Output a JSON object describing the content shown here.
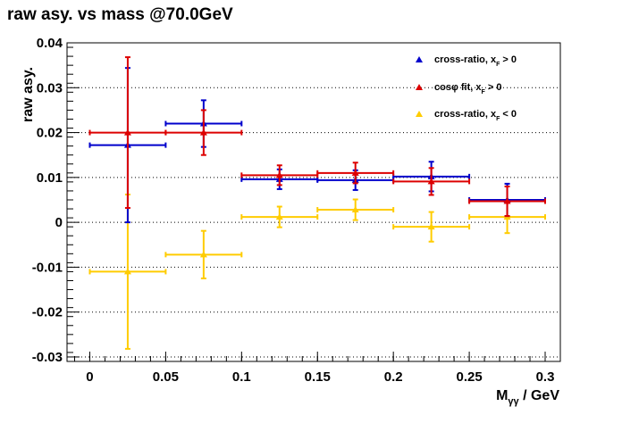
{
  "chart_data": {
    "type": "scatter",
    "title": "raw asy. vs mass @70.0GeV",
    "xlabel": "M_γγ / GeV",
    "ylabel": "raw asy.",
    "xlim": [
      -0.015,
      0.31
    ],
    "ylim": [
      -0.031,
      0.04
    ],
    "xticks": [
      0,
      0.05,
      0.1,
      0.15,
      0.2,
      0.25,
      0.3
    ],
    "xtick_labels": [
      "0",
      "0.05",
      "0.1",
      "0.15",
      "0.2",
      "0.25",
      "0.3"
    ],
    "yticks": [
      0.04,
      0.03,
      0.02,
      0.01,
      0,
      -0.01,
      -0.02,
      -0.03
    ],
    "ytick_labels": [
      "0.04",
      "0.03",
      "0.02",
      "0.01",
      "0",
      "-0.01",
      "-0.02",
      "-0.03"
    ],
    "grid": "horizontal dotted",
    "legend_position": "top-right",
    "series": [
      {
        "name": "cross-ratio, x_F > 0",
        "color": "#0000cc",
        "points": [
          {
            "x": 0.025,
            "xerr": 0.025,
            "y": 0.0172,
            "yerr": 0.0172
          },
          {
            "x": 0.075,
            "xerr": 0.025,
            "y": 0.022,
            "yerr": 0.0052
          },
          {
            "x": 0.125,
            "xerr": 0.025,
            "y": 0.0096,
            "yerr": 0.0022
          },
          {
            "x": 0.175,
            "xerr": 0.025,
            "y": 0.0094,
            "yerr": 0.0022
          },
          {
            "x": 0.225,
            "xerr": 0.025,
            "y": 0.0102,
            "yerr": 0.0033
          },
          {
            "x": 0.275,
            "xerr": 0.025,
            "y": 0.005,
            "yerr": 0.0036
          }
        ]
      },
      {
        "name": "cosφ fit, x_F > 0",
        "color": "#dd0000",
        "points": [
          {
            "x": 0.025,
            "xerr": 0.025,
            "y": 0.02,
            "yerr": 0.0168
          },
          {
            "x": 0.075,
            "xerr": 0.025,
            "y": 0.02,
            "yerr": 0.005
          },
          {
            "x": 0.125,
            "xerr": 0.025,
            "y": 0.0105,
            "yerr": 0.0022
          },
          {
            "x": 0.175,
            "xerr": 0.025,
            "y": 0.011,
            "yerr": 0.0023
          },
          {
            "x": 0.225,
            "xerr": 0.025,
            "y": 0.0091,
            "yerr": 0.003
          },
          {
            "x": 0.275,
            "xerr": 0.025,
            "y": 0.0047,
            "yerr": 0.0033
          }
        ]
      },
      {
        "name": "cross-ratio, x_F < 0",
        "color": "#ffcc00",
        "points": [
          {
            "x": 0.025,
            "xerr": 0.025,
            "y": -0.011,
            "yerr": 0.0172
          },
          {
            "x": 0.075,
            "xerr": 0.025,
            "y": -0.0072,
            "yerr": 0.0053
          },
          {
            "x": 0.125,
            "xerr": 0.025,
            "y": 0.0012,
            "yerr": 0.0023
          },
          {
            "x": 0.175,
            "xerr": 0.025,
            "y": 0.0028,
            "yerr": 0.0023
          },
          {
            "x": 0.225,
            "xerr": 0.025,
            "y": -0.001,
            "yerr": 0.0033
          },
          {
            "x": 0.275,
            "xerr": 0.025,
            "y": 0.0012,
            "yerr": 0.0036
          }
        ]
      }
    ]
  }
}
